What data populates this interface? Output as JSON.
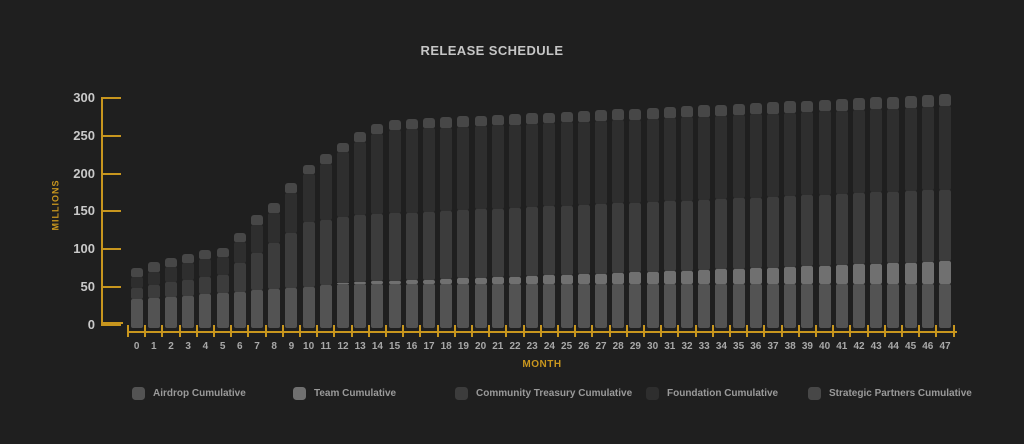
{
  "title": "RELEASE SCHEDULE",
  "chart_data": {
    "type": "bar",
    "stacked": true,
    "title": "RELEASE SCHEDULE",
    "xlabel": "MONTH",
    "ylabel": "MILLIONS",
    "ylim": [
      0,
      300
    ],
    "yticks": [
      0,
      50,
      100,
      150,
      200,
      250,
      300
    ],
    "grid": false,
    "legend_position": "bottom",
    "axis_color": "#c8961e",
    "background_color": "#1f1f1f",
    "categories": [
      "0",
      "1",
      "2",
      "3",
      "4",
      "5",
      "6",
      "7",
      "8",
      "9",
      "10",
      "11",
      "12",
      "13",
      "14",
      "15",
      "16",
      "17",
      "18",
      "19",
      "20",
      "21",
      "22",
      "23",
      "24",
      "25",
      "26",
      "27",
      "28",
      "29",
      "30",
      "31",
      "32",
      "33",
      "34",
      "35",
      "36",
      "37",
      "38",
      "39",
      "40",
      "41",
      "42",
      "43",
      "44",
      "45",
      "46",
      "47"
    ],
    "series": [
      {
        "name": "Airdrop Cumulative",
        "color": "#535353",
        "values": [
          30,
          31.7,
          33.3,
          35,
          36.7,
          38.3,
          40,
          41.7,
          43.3,
          45,
          46.7,
          48.3,
          50,
          50,
          50,
          50,
          50,
          50,
          50,
          50,
          50,
          50,
          50,
          50,
          50,
          50,
          50,
          50,
          50,
          50,
          50,
          50,
          50,
          50,
          50,
          50,
          50,
          50,
          50,
          50,
          50,
          50,
          50,
          50,
          50,
          50,
          50,
          50
        ]
      },
      {
        "name": "Team Cumulative",
        "color": "#707070",
        "values": [
          0,
          0,
          0,
          0,
          0,
          0,
          0,
          0,
          0,
          0,
          0,
          0,
          2,
          2.8,
          3.6,
          4.4,
          5.2,
          6,
          6.8,
          7.6,
          8.4,
          9.2,
          10,
          10.8,
          11.6,
          12.4,
          13.2,
          14,
          14.8,
          15.6,
          16.4,
          17.2,
          18,
          18.8,
          19.6,
          20.4,
          21.2,
          22,
          22.8,
          23.6,
          24.4,
          25.2,
          26,
          26.8,
          27.6,
          28.4,
          29.2,
          30
        ]
      },
      {
        "name": "Community Treasury Cumulative",
        "color": "#3c3c3c",
        "values": [
          15,
          17,
          19,
          21,
          23,
          24,
          38,
          50,
          61,
          72,
          85,
          86,
          87,
          88,
          88.5,
          89,
          89.5,
          90,
          90.2,
          90.4,
          90.5,
          90.7,
          90.9,
          91,
          91.2,
          91.4,
          91.5,
          91.7,
          91.9,
          92,
          92.2,
          92.4,
          92.5,
          92.7,
          92.9,
          93,
          93.2,
          93.4,
          93.5,
          93.7,
          93.9,
          94,
          94.2,
          94.4,
          94.5,
          94.7,
          94.9,
          95
        ]
      },
      {
        "name": "Foundation Cumulative",
        "color": "#2e2e2e",
        "values": [
          15,
          18,
          20,
          22,
          23,
          23.5,
          27.5,
          36.5,
          40,
          54,
          63.5,
          75,
          85,
          97,
          106,
          110,
          110,
          110,
          110,
          110,
          110,
          110,
          110,
          110,
          110,
          110,
          110,
          110,
          110,
          110,
          110,
          110,
          110,
          110,
          110,
          110,
          110,
          110,
          110,
          110,
          110,
          110,
          110,
          110,
          110,
          110,
          110,
          110
        ]
      },
      {
        "name": "Strategic Partners Cumulative",
        "color": "#474747",
        "values": [
          12,
          12.1,
          12.2,
          12.3,
          12.3,
          12.4,
          12.5,
          12.6,
          12.7,
          12.8,
          12.9,
          12.9,
          13,
          13.1,
          13.2,
          13.3,
          13.4,
          13.4,
          13.5,
          13.6,
          13.7,
          13.8,
          13.9,
          14,
          14,
          14.1,
          14.2,
          14.3,
          14.4,
          14.5,
          14.6,
          14.6,
          14.7,
          14.8,
          14.9,
          15,
          15.1,
          15.1,
          15.2,
          15.3,
          15.4,
          15.5,
          15.6,
          15.7,
          15.7,
          15.8,
          15.9,
          16
        ]
      }
    ]
  },
  "legend": {
    "items": [
      "Airdrop Cumulative",
      "Team Cumulative",
      "Community Treasury Cumulative",
      "Foundation Cumulative",
      "Strategic Partners Cumulative"
    ]
  }
}
